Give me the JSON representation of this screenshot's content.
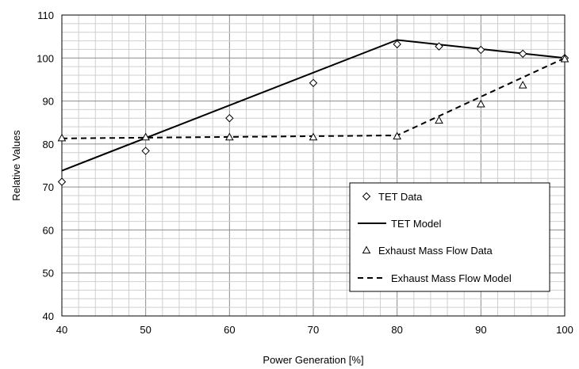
{
  "chart_data": {
    "type": "line",
    "title": "",
    "xlabel": "Power Generation [%]",
    "ylabel": "Relative Values",
    "xlim": [
      40,
      100
    ],
    "ylim": [
      40,
      110
    ],
    "x_ticks": [
      40,
      50,
      60,
      70,
      80,
      90,
      100
    ],
    "y_ticks": [
      40,
      50,
      60,
      70,
      80,
      90,
      100,
      110
    ],
    "x_tick_labels": [
      "40",
      "50",
      "60",
      "70",
      "80",
      "90",
      "100"
    ],
    "y_tick_labels": [
      "40",
      "50",
      "60",
      "70",
      "80",
      "90",
      "100",
      "110"
    ],
    "grid": "major and minor",
    "legend_position": "lower-right",
    "series": [
      {
        "name": "TET Data",
        "kind": "scatter",
        "marker": "diamond",
        "x": [
          40,
          50,
          60,
          70,
          80,
          85,
          90,
          95,
          100
        ],
        "y": [
          71.2,
          78.4,
          86.0,
          94.2,
          103.2,
          102.7,
          101.9,
          101.0,
          100.0
        ]
      },
      {
        "name": "TET Model",
        "kind": "line",
        "style": "solid",
        "x": [
          40,
          80,
          100
        ],
        "y": [
          73.8,
          104.2,
          100.0
        ]
      },
      {
        "name": "Exhaust Mass Flow Data",
        "kind": "scatter",
        "marker": "triangle",
        "x": [
          40,
          50,
          60,
          70,
          80,
          85,
          90,
          95,
          100
        ],
        "y": [
          81.4,
          81.6,
          81.6,
          81.6,
          81.8,
          85.5,
          89.3,
          93.7,
          99.8
        ]
      },
      {
        "name": "Exhaust Mass Flow Model",
        "kind": "line",
        "style": "dashed",
        "x": [
          40,
          80,
          100
        ],
        "y": [
          81.3,
          82.0,
          100.0
        ]
      }
    ]
  }
}
